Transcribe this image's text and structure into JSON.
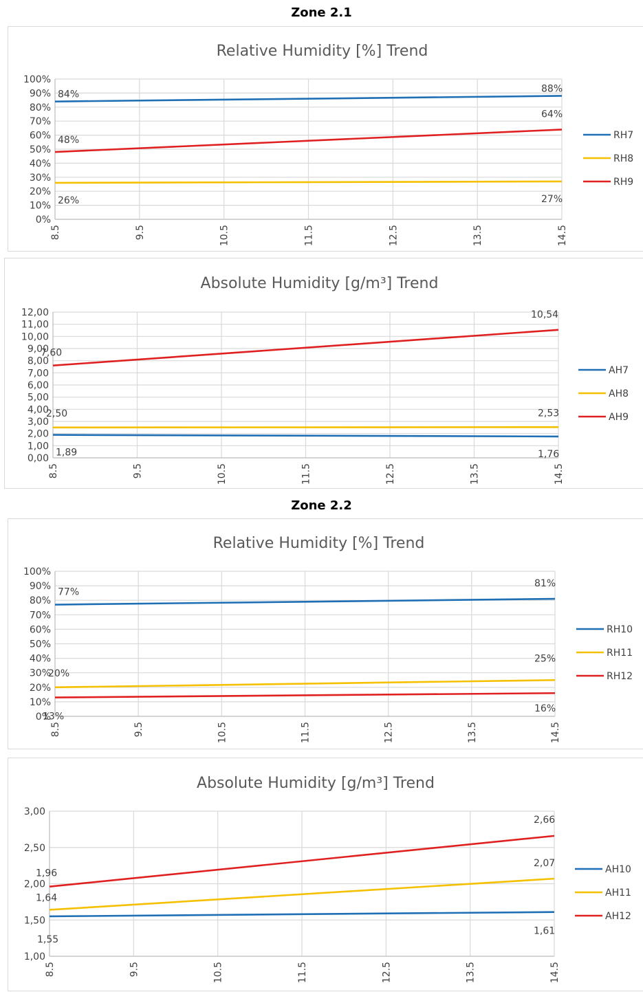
{
  "zones": [
    {
      "title": "Zone 2.1"
    },
    {
      "title": "Zone 2.2"
    }
  ],
  "chart_data": [
    {
      "type": "line",
      "title": "Relative Humidity [%] Trend",
      "x": [
        8.5,
        9.5,
        10.5,
        11.5,
        12.5,
        13.5,
        14.5
      ],
      "x_tick_labels": [
        "8.5",
        "9.5",
        "10.5",
        "11.5",
        "12.5",
        "13.5",
        "14.5"
      ],
      "ylim": [
        0,
        100
      ],
      "y_ticks": [
        0,
        10,
        20,
        30,
        40,
        50,
        60,
        70,
        80,
        90,
        100
      ],
      "y_tick_labels": [
        "0%",
        "10%",
        "20%",
        "30%",
        "40%",
        "50%",
        "60%",
        "70%",
        "80%",
        "90%",
        "100%"
      ],
      "legend_position": "right",
      "grid": true,
      "series": [
        {
          "name": "RH7",
          "color": "#1f6fb5",
          "start": 84,
          "end": 88,
          "start_label": "84%",
          "end_label": "88%"
        },
        {
          "name": "RH8",
          "color": "#f5c000",
          "start": 26,
          "end": 27,
          "start_label": "26%",
          "end_label": "27%"
        },
        {
          "name": "RH9",
          "color": "#e02020",
          "start": 48,
          "end": 64,
          "start_label": "48%",
          "end_label": "64%"
        }
      ]
    },
    {
      "type": "line",
      "title": "Absolute Humidity [g/m³] Trend",
      "x": [
        8.5,
        9.5,
        10.5,
        11.5,
        12.5,
        13.5,
        14.5
      ],
      "x_tick_labels": [
        "8.5",
        "9.5",
        "10.5",
        "11.5",
        "12.5",
        "13.5",
        "14.5"
      ],
      "ylim": [
        0,
        12
      ],
      "y_ticks": [
        0,
        1,
        2,
        3,
        4,
        5,
        6,
        7,
        8,
        9,
        10,
        11,
        12
      ],
      "y_tick_labels": [
        "0,00",
        "1,00",
        "2,00",
        "3,00",
        "4,00",
        "5,00",
        "6,00",
        "7,00",
        "8,00",
        "9,00",
        "10,00",
        "11,00",
        "12,00"
      ],
      "legend_position": "right",
      "grid": true,
      "series": [
        {
          "name": "AH7",
          "color": "#1f6fb5",
          "start": 1.89,
          "end": 1.76,
          "start_label": "1,89",
          "end_label": "1,76"
        },
        {
          "name": "AH8",
          "color": "#f5c000",
          "start": 2.5,
          "end": 2.53,
          "start_label": "2,50",
          "end_label": "2,53"
        },
        {
          "name": "AH9",
          "color": "#e02020",
          "start": 7.6,
          "end": 10.54,
          "start_label": "7,60",
          "end_label": "10,54"
        }
      ]
    },
    {
      "type": "line",
      "title": "Relative Humidity [%] Trend",
      "x": [
        8.5,
        9.5,
        10.5,
        11.5,
        12.5,
        13.5,
        14.5
      ],
      "x_tick_labels": [
        "8.5",
        "9.5",
        "10.5",
        "11.5",
        "12.5",
        "13.5",
        "14.5"
      ],
      "ylim": [
        0,
        100
      ],
      "y_ticks": [
        0,
        10,
        20,
        30,
        40,
        50,
        60,
        70,
        80,
        90,
        100
      ],
      "y_tick_labels": [
        "0%",
        "10%",
        "20%",
        "30%",
        "40%",
        "50%",
        "60%",
        "70%",
        "80%",
        "90%",
        "100%"
      ],
      "legend_position": "right",
      "grid": true,
      "series": [
        {
          "name": "RH10",
          "color": "#1f6fb5",
          "start": 77,
          "end": 81,
          "start_label": "77%",
          "end_label": "81%"
        },
        {
          "name": "RH11",
          "color": "#f5c000",
          "start": 20,
          "end": 25,
          "start_label": "20%",
          "end_label": "25%"
        },
        {
          "name": "RH12",
          "color": "#e02020",
          "start": 13,
          "end": 16,
          "start_label": "13%",
          "end_label": "16%"
        }
      ]
    },
    {
      "type": "line",
      "title": "Absolute Humidity [g/m³] Trend",
      "x": [
        8.5,
        9.5,
        10.5,
        11.5,
        12.5,
        13.5,
        14.5
      ],
      "x_tick_labels": [
        "8.5",
        "9.5",
        "10.5",
        "11.5",
        "12.5",
        "13.5",
        "14.5"
      ],
      "ylim": [
        1,
        3
      ],
      "y_ticks": [
        1,
        1.5,
        2,
        2.5,
        3
      ],
      "y_tick_labels": [
        "1,00",
        "1,50",
        "2,00",
        "2,50",
        "3,00"
      ],
      "legend_position": "right",
      "grid": true,
      "series": [
        {
          "name": "AH10",
          "color": "#1f6fb5",
          "start": 1.55,
          "end": 1.61,
          "start_label": "1,55",
          "end_label": "1,61"
        },
        {
          "name": "AH11",
          "color": "#f5c000",
          "start": 1.64,
          "end": 2.07,
          "start_label": "1,64",
          "end_label": "2,07"
        },
        {
          "name": "AH12",
          "color": "#e02020",
          "start": 1.96,
          "end": 2.66,
          "start_label": "1,96",
          "end_label": "2,66"
        }
      ]
    }
  ]
}
